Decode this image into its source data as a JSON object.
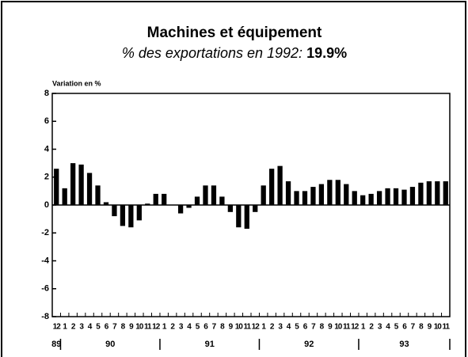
{
  "chart_data": {
    "type": "bar",
    "title": "Machines et équipement",
    "subtitle": "% des exportations en 1992:",
    "subtitle_value": "19.9%",
    "y_label": "Variation en %",
    "categories": [
      "12",
      "1",
      "2",
      "3",
      "4",
      "5",
      "6",
      "7",
      "8",
      "9",
      "10",
      "11",
      "12",
      "1",
      "2",
      "3",
      "4",
      "5",
      "6",
      "7",
      "8",
      "9",
      "10",
      "11",
      "12",
      "1",
      "2",
      "3",
      "4",
      "5",
      "6",
      "7",
      "8",
      "9",
      "10",
      "11",
      "12",
      "1",
      "2",
      "3",
      "4",
      "5",
      "6",
      "7",
      "8",
      "9",
      "10",
      "11"
    ],
    "year_groups": [
      {
        "label": "89",
        "start": 0,
        "end": 0
      },
      {
        "label": "90",
        "start": 1,
        "end": 12
      },
      {
        "label": "91",
        "start": 13,
        "end": 24
      },
      {
        "label": "92",
        "start": 25,
        "end": 36
      },
      {
        "label": "93",
        "start": 37,
        "end": 47
      }
    ],
    "values": [
      2.6,
      1.2,
      3.0,
      2.9,
      2.3,
      1.4,
      0.2,
      -0.8,
      -1.5,
      -1.6,
      -1.1,
      0.1,
      0.8,
      0.8,
      0.0,
      -0.6,
      -0.2,
      0.6,
      1.4,
      1.4,
      0.6,
      -0.5,
      -1.6,
      -1.7,
      -0.5,
      1.4,
      2.6,
      2.8,
      1.7,
      1.0,
      1.0,
      1.3,
      1.5,
      1.8,
      1.8,
      1.5,
      1.0,
      0.7,
      0.8,
      1.0,
      1.2,
      1.2,
      1.1,
      1.3,
      1.6,
      1.7,
      1.7,
      1.7
    ],
    "color": "#000000",
    "ylim": [
      -8,
      8
    ],
    "yticks": [
      -8,
      -6,
      -4,
      -2,
      0,
      2,
      4,
      6,
      8
    ]
  }
}
